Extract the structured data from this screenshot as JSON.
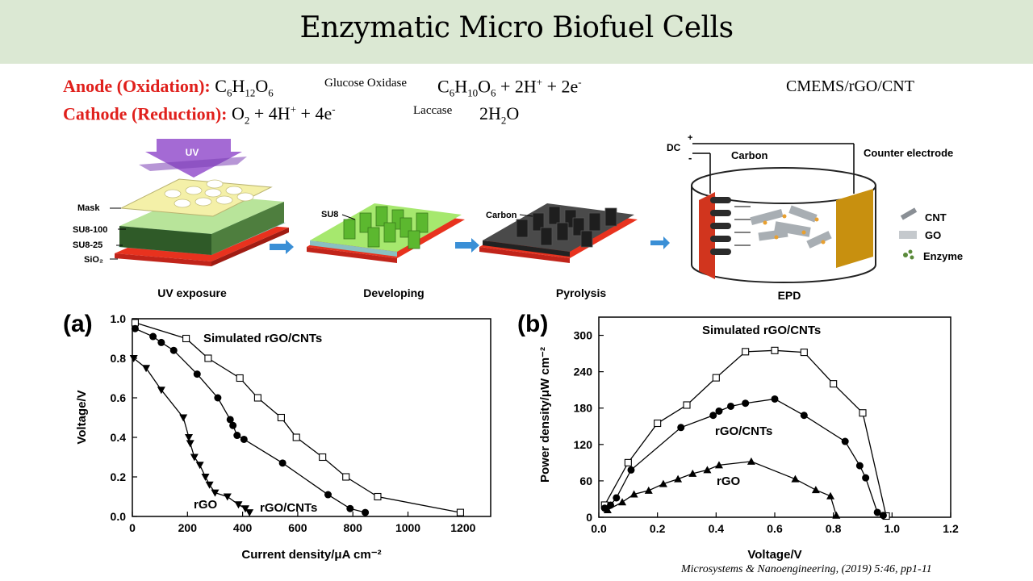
{
  "slide": {
    "title": "Enzymatic Micro Biofuel Cells",
    "anode": {
      "label": "Anode (Oxidation):",
      "reactant": [
        "C",
        "6",
        "H",
        "12",
        "O",
        "6"
      ],
      "catalyst": "Glucose Oxidase",
      "product_formula": [
        "C",
        "6",
        "H",
        "10",
        "O",
        "6"
      ],
      "product_rest": [
        "+ 2H",
        "+",
        " + 2e",
        "-"
      ]
    },
    "cathode": {
      "label": "Cathode (Reduction):",
      "reactant": [
        "O",
        "2",
        " + 4H",
        "+",
        " + 4e",
        "-"
      ],
      "catalyst": "Laccase",
      "product": [
        "2H",
        "2",
        "O"
      ]
    },
    "electrode_label": "CMEMS/rGO/CNT",
    "citation": "Microsystems & Nanoengineering, (2019) 5:46, pp1-11"
  },
  "process": {
    "uv_arrow": "UV",
    "layers": [
      "Mask",
      "SU8-100",
      "SU8-25",
      "SiO₂"
    ],
    "su8_label": "SU8",
    "carbon_label": "Carbon",
    "steps": [
      "UV exposure",
      "Developing",
      "Pyrolysis",
      "EPD"
    ],
    "epd": {
      "dc": "DC",
      "plus": "+",
      "minus": "-",
      "carbon": "Carbon",
      "counter": "Counter electrode",
      "legend": [
        "CNT",
        "GO",
        "Enzyme"
      ]
    },
    "colors": {
      "uv": "#9b59d0",
      "su8": "#5cb82f",
      "carbon": "#2b2b2b",
      "substrate": "#e8321e",
      "counter": "#c8900f",
      "arrow": "#3a8fd6"
    }
  },
  "panel_a": {
    "label": "(a)"
  },
  "panel_b": {
    "label": "(b)"
  },
  "chart_data": [
    {
      "type": "line",
      "xlabel": "Current density/μA cm⁻²",
      "ylabel": "Voltage/V",
      "xlim": [
        0,
        1300
      ],
      "ylim": [
        0,
        1.0
      ],
      "xticks": [
        0,
        200,
        400,
        600,
        800,
        1000,
        1200
      ],
      "yticks": [
        0.0,
        0.2,
        0.4,
        0.6,
        0.8,
        1.0
      ],
      "series": [
        {
          "name": "Simulated rGO/CNTs",
          "marker": "square-open",
          "x": [
            10,
            195,
            275,
            390,
            455,
            540,
            595,
            690,
            775,
            890,
            1190
          ],
          "y": [
            0.98,
            0.9,
            0.8,
            0.7,
            0.6,
            0.5,
            0.4,
            0.3,
            0.2,
            0.1,
            0.02
          ]
        },
        {
          "name": "rGO/CNTs",
          "marker": "circle",
          "x": [
            10,
            75,
            105,
            150,
            235,
            310,
            355,
            365,
            380,
            405,
            545,
            710,
            790,
            845
          ],
          "y": [
            0.95,
            0.91,
            0.88,
            0.84,
            0.72,
            0.6,
            0.49,
            0.46,
            0.41,
            0.39,
            0.27,
            0.11,
            0.04,
            0.02
          ]
        },
        {
          "name": "rGO",
          "marker": "triangle-down",
          "x": [
            5,
            50,
            105,
            185,
            205,
            210,
            225,
            245,
            265,
            280,
            300,
            345,
            385,
            410,
            425
          ],
          "y": [
            0.8,
            0.75,
            0.64,
            0.5,
            0.4,
            0.37,
            0.3,
            0.26,
            0.2,
            0.16,
            0.12,
            0.1,
            0.06,
            0.04,
            0.02
          ]
        }
      ]
    },
    {
      "type": "line",
      "xlabel": "Voltage/V",
      "ylabel": "Power density/μW cm⁻²",
      "xlim": [
        0,
        1.2
      ],
      "ylim": [
        0,
        330
      ],
      "xticks": [
        0.0,
        0.2,
        0.4,
        0.6,
        0.8,
        1.0,
        1.2
      ],
      "yticks": [
        0,
        60,
        120,
        180,
        240,
        300
      ],
      "series": [
        {
          "name": "Simulated rGO/CNTs",
          "marker": "square-open",
          "x": [
            0.02,
            0.1,
            0.2,
            0.3,
            0.4,
            0.5,
            0.6,
            0.7,
            0.8,
            0.9,
            0.98
          ],
          "y": [
            20,
            90,
            155,
            185,
            230,
            273,
            275,
            272,
            220,
            172,
            2
          ]
        },
        {
          "name": "rGO/CNTs",
          "marker": "circle",
          "x": [
            0.02,
            0.04,
            0.06,
            0.11,
            0.28,
            0.39,
            0.41,
            0.45,
            0.5,
            0.6,
            0.7,
            0.84,
            0.89,
            0.91,
            0.95,
            0.97
          ],
          "y": [
            15,
            20,
            32,
            78,
            148,
            168,
            175,
            183,
            188,
            195,
            168,
            125,
            85,
            65,
            8,
            3
          ]
        },
        {
          "name": "rGO",
          "marker": "triangle-up",
          "x": [
            0.03,
            0.08,
            0.12,
            0.17,
            0.22,
            0.27,
            0.32,
            0.37,
            0.41,
            0.52,
            0.67,
            0.74,
            0.79,
            0.81
          ],
          "y": [
            12,
            25,
            38,
            44,
            55,
            63,
            72,
            78,
            86,
            92,
            63,
            45,
            35,
            3
          ]
        }
      ]
    }
  ]
}
